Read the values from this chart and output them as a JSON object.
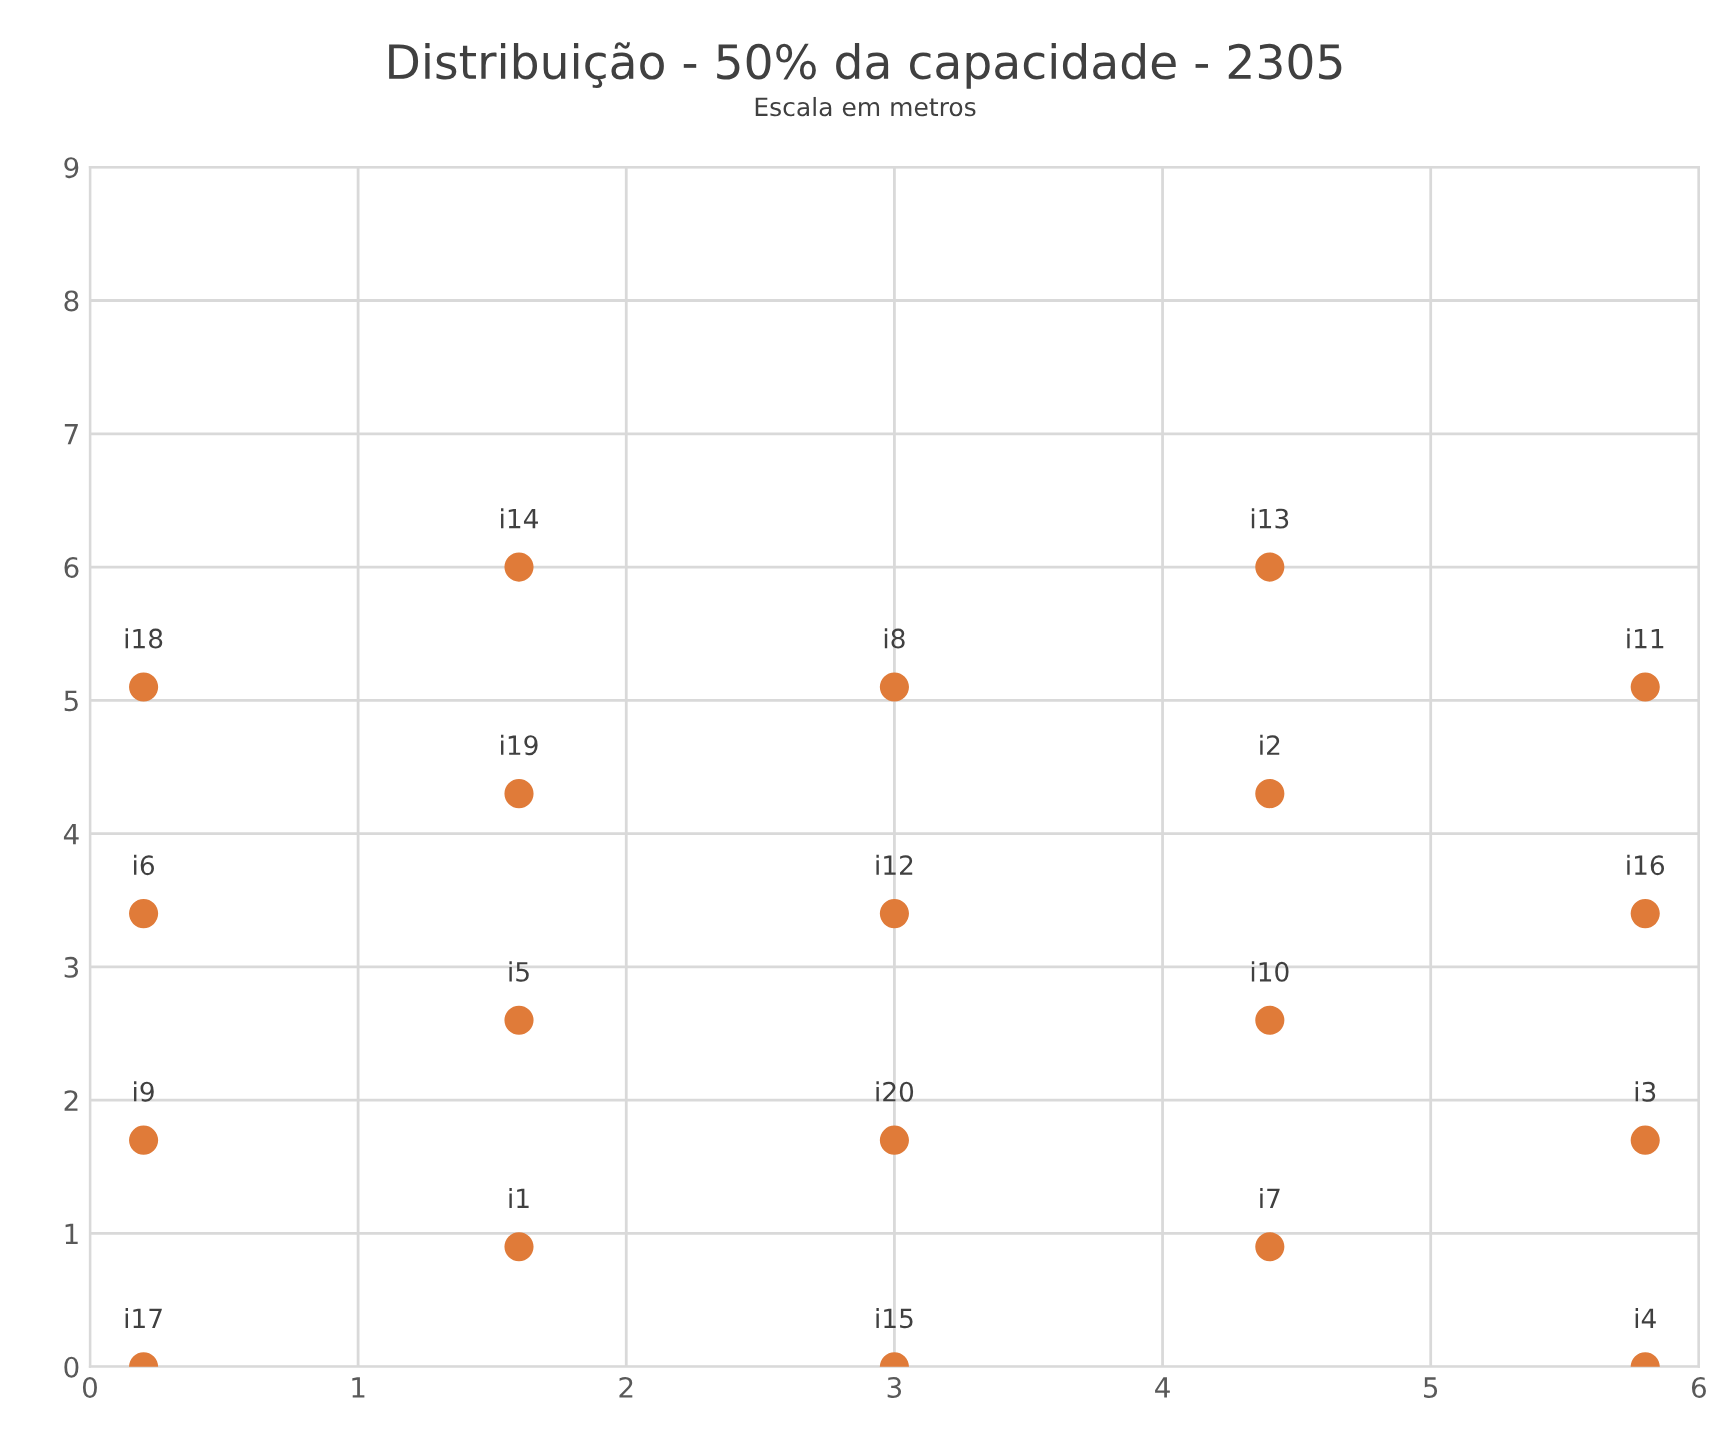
{
  "chart_data": {
    "type": "scatter",
    "title": "Distribuição - 50% da capacidade - 2305",
    "subtitle": "Escala em metros",
    "x": [
      0.2,
      3.0,
      5.8,
      1.6,
      4.4,
      0.2,
      3.0,
      5.8,
      1.6,
      4.4,
      0.2,
      3.0,
      5.8,
      1.6,
      4.4,
      0.2,
      3.0,
      5.8,
      1.6,
      4.4
    ],
    "series": [
      {
        "color": "#e07b39",
        "values": [
          0,
          0,
          0,
          0.9,
          0.9,
          1.7,
          1.7,
          1.7,
          2.6,
          2.6,
          3.4,
          3.4,
          3.4,
          4.3,
          4.3,
          5.1,
          5.1,
          5.1,
          6.0,
          6.0
        ]
      }
    ],
    "annotations": [
      {
        "text": "i17",
        "x": 0.2,
        "y": 0
      },
      {
        "text": "i15",
        "x": 3.0,
        "y": 0
      },
      {
        "text": "i4",
        "x": 5.8,
        "y": 0
      },
      {
        "text": "i1",
        "x": 1.6,
        "y": 0.9
      },
      {
        "text": "i7",
        "x": 4.4,
        "y": 0.9
      },
      {
        "text": "i9",
        "x": 0.2,
        "y": 1.7
      },
      {
        "text": "i20",
        "x": 3.0,
        "y": 1.7
      },
      {
        "text": "i3",
        "x": 5.8,
        "y": 1.7
      },
      {
        "text": "i5",
        "x": 1.6,
        "y": 2.6
      },
      {
        "text": "i10",
        "x": 4.4,
        "y": 2.6
      },
      {
        "text": "i6",
        "x": 0.2,
        "y": 3.4
      },
      {
        "text": "i12",
        "x": 3.0,
        "y": 3.4
      },
      {
        "text": "i16",
        "x": 5.8,
        "y": 3.4
      },
      {
        "text": "i19",
        "x": 1.6,
        "y": 4.3
      },
      {
        "text": "i2",
        "x": 4.4,
        "y": 4.3
      },
      {
        "text": "i18",
        "x": 0.2,
        "y": 5.1
      },
      {
        "text": "i8",
        "x": 3.0,
        "y": 5.1
      },
      {
        "text": "i11",
        "x": 5.8,
        "y": 5.1
      },
      {
        "text": "i14",
        "x": 1.6,
        "y": 6.0
      },
      {
        "text": "i13",
        "x": 4.4,
        "y": 6.0
      }
    ],
    "xlim": [
      0,
      6
    ],
    "xticks": [
      0,
      1,
      2,
      3,
      4,
      5,
      6
    ],
    "ylim": [
      0,
      9
    ],
    "yticks": [
      0,
      1,
      2,
      3,
      4,
      5,
      6,
      7,
      8,
      9
    ],
    "grid": true,
    "marker": "circle",
    "legend": false
  }
}
